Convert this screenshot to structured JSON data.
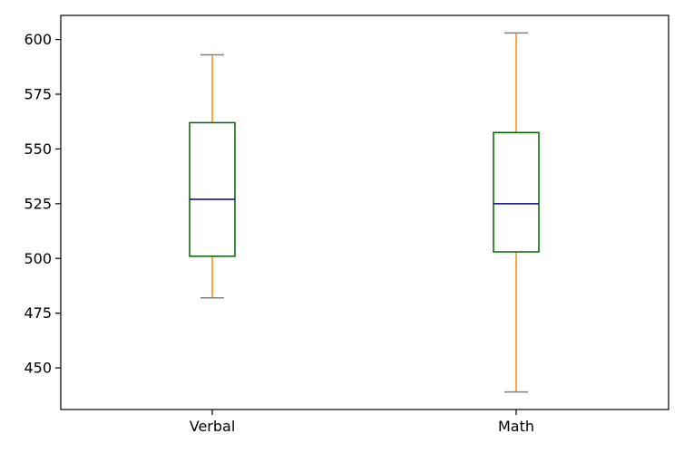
{
  "chart_data": {
    "type": "boxplot",
    "title": "",
    "xlabel": "",
    "ylabel": "",
    "categories": [
      "Verbal",
      "Math"
    ],
    "boxes": [
      {
        "name": "Verbal",
        "whislo": 482,
        "q1": 501,
        "med": 527,
        "q3": 562,
        "whishi": 593
      },
      {
        "name": "Math",
        "whislo": 439,
        "q1": 503,
        "med": 525,
        "q3": 557.5,
        "whishi": 603
      }
    ],
    "ylim": [
      431,
      611
    ],
    "yticks": [
      450,
      475,
      500,
      525,
      550,
      575,
      600
    ],
    "grid": false,
    "colors": {
      "box": "#006400",
      "median": "#00008b",
      "whisker": "#ff8c00",
      "cap": "#808080",
      "axis": "#000000"
    }
  }
}
